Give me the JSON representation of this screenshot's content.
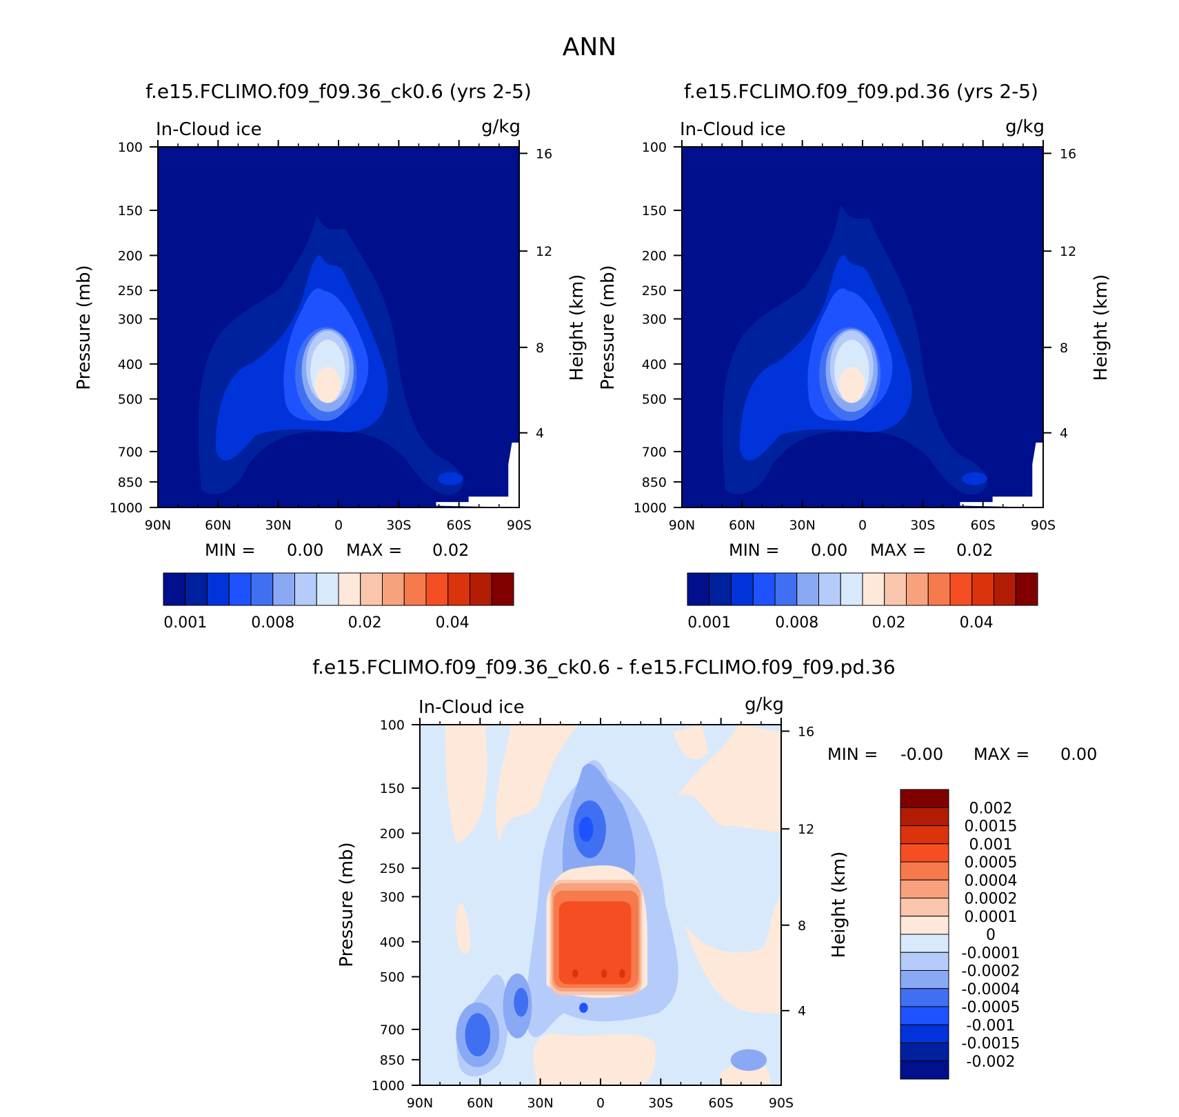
{
  "title": "ANN",
  "chart_data": [
    {
      "type": "heatmap",
      "title": "f.e15.FCLIMO.f09_f09.36_ck0.6 (yrs 2-5)",
      "left_label": "In-Cloud ice",
      "units": "g/kg",
      "ylabel": "Pressure (mb)",
      "y2label": "Height (km)",
      "xticks": [
        "90N",
        "60N",
        "30N",
        "0",
        "30S",
        "60S",
        "90S"
      ],
      "yticks": [
        "100",
        "150",
        "200",
        "250",
        "300",
        "400",
        "500",
        "700",
        "850",
        "1000"
      ],
      "y2ticks": [
        "16",
        "12",
        "8",
        "4"
      ],
      "min_label": "MIN =",
      "min_value": "0.00",
      "max_label": "MAX =",
      "max_value": "0.02",
      "colorbar_ticks": [
        "0.001",
        "0.008",
        "0.02",
        "0.04"
      ],
      "levels": 16
    },
    {
      "type": "heatmap",
      "title": "f.e15.FCLIMO.f09_f09.pd.36 (yrs 2-5)",
      "left_label": "In-Cloud ice",
      "units": "g/kg",
      "ylabel": "Pressure (mb)",
      "y2label": "Height (km)",
      "xticks": [
        "90N",
        "60N",
        "30N",
        "0",
        "30S",
        "60S",
        "90S"
      ],
      "yticks": [
        "100",
        "150",
        "200",
        "250",
        "300",
        "400",
        "500",
        "700",
        "850",
        "1000"
      ],
      "y2ticks": [
        "16",
        "12",
        "8",
        "4"
      ],
      "min_label": "MIN =",
      "min_value": "0.00",
      "max_label": "MAX =",
      "max_value": "0.02",
      "colorbar_ticks": [
        "0.001",
        "0.008",
        "0.02",
        "0.04"
      ],
      "levels": 16
    },
    {
      "type": "heatmap",
      "title": "f.e15.FCLIMO.f09_f09.36_ck0.6 - f.e15.FCLIMO.f09_f09.pd.36",
      "left_label": "In-Cloud ice",
      "units": "g/kg",
      "ylabel": "Pressure (mb)",
      "y2label": "Height (km)",
      "xticks": [
        "90N",
        "60N",
        "30N",
        "0",
        "30S",
        "60S",
        "90S"
      ],
      "yticks": [
        "100",
        "150",
        "200",
        "250",
        "300",
        "400",
        "500",
        "700",
        "850",
        "1000"
      ],
      "y2ticks": [
        "16",
        "12",
        "8",
        "4"
      ],
      "min_label": "MIN =",
      "min_value": "-0.00",
      "max_label": "MAX =",
      "max_value": "0.00",
      "colorbar_ticks": [
        "0.002",
        "0.0015",
        "0.001",
        "0.0005",
        "0.0004",
        "0.0002",
        "0.0001",
        "0",
        "-0.0001",
        "-0.0002",
        "-0.0004",
        "-0.0005",
        "-0.001",
        "-0.0015",
        "-0.002"
      ]
    }
  ],
  "colors": {
    "seq": [
      "#000f8c",
      "#00219e",
      "#0033d9",
      "#1f52ff",
      "#4070f2",
      "#8aa9f5",
      "#b5ccfa",
      "#d8e9fc",
      "#fde8da",
      "#f9c6ad",
      "#f7a27c",
      "#f77a4c",
      "#f54e22",
      "#db330c",
      "#b31c04",
      "#800000"
    ],
    "div": [
      "#800000",
      "#b31c04",
      "#db330c",
      "#f54e22",
      "#f77a4c",
      "#f7a27c",
      "#f9c6ad",
      "#fde8da",
      "#d8e9fc",
      "#b5ccfa",
      "#8aa9f5",
      "#4070f2",
      "#1f52ff",
      "#0033d9",
      "#00219e",
      "#000f8c"
    ]
  }
}
